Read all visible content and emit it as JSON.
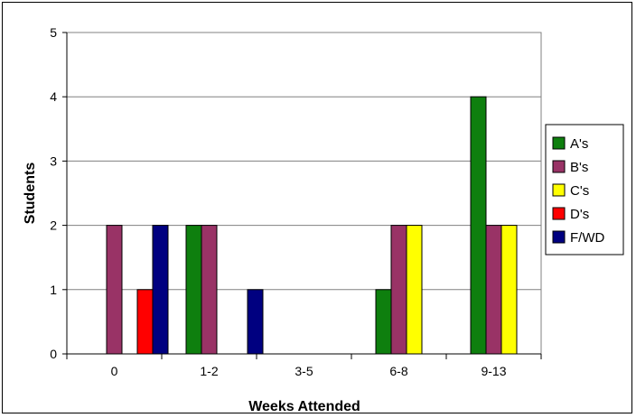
{
  "chart_data": {
    "type": "bar",
    "title": "",
    "xlabel": "Weeks Attended",
    "ylabel": "Students",
    "categories": [
      "0",
      "1-2",
      "3-5",
      "6-8",
      "9-13"
    ],
    "ylim": [
      0,
      5
    ],
    "yticks": [
      "0",
      "1",
      "2",
      "3",
      "4",
      "5"
    ],
    "grid": true,
    "legend_position": "right",
    "series": [
      {
        "name": "A's",
        "color": "#0E7F0E",
        "values": [
          0,
          2,
          0,
          1,
          4
        ]
      },
      {
        "name": "B's",
        "color": "#993366",
        "values": [
          2,
          2,
          0,
          2,
          2
        ]
      },
      {
        "name": "C's",
        "color": "#FFFF00",
        "values": [
          0,
          0,
          0,
          2,
          2
        ]
      },
      {
        "name": "D's",
        "color": "#FF0000",
        "values": [
          1,
          0,
          0,
          0,
          0
        ]
      },
      {
        "name": "F/WD",
        "color": "#000080",
        "values": [
          2,
          1,
          0,
          0,
          0
        ]
      }
    ]
  }
}
